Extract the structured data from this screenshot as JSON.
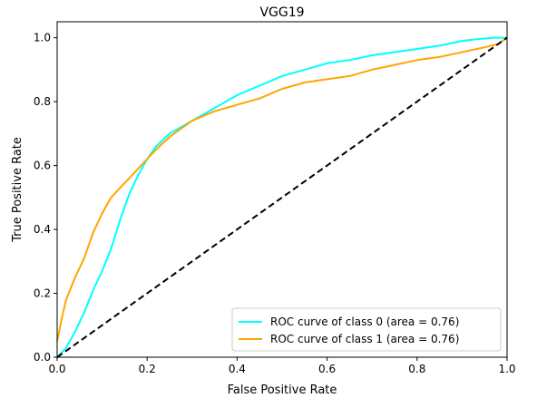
{
  "chart_data": {
    "type": "line",
    "title": "VGG19",
    "xlabel": "False Positive Rate",
    "ylabel": "True Positive Rate",
    "xlim": [
      0.0,
      1.0
    ],
    "ylim": [
      0.0,
      1.05
    ],
    "xticks": [
      0.0,
      0.2,
      0.4,
      0.6,
      0.8,
      1.0
    ],
    "yticks": [
      0.0,
      0.2,
      0.4,
      0.6,
      0.8,
      1.0
    ],
    "xtick_labels": [
      "0.0",
      "0.2",
      "0.4",
      "0.6",
      "0.8",
      "1.0"
    ],
    "ytick_labels": [
      "0.0",
      "0.2",
      "0.4",
      "0.6",
      "0.8",
      "1.0"
    ],
    "grid": false,
    "legend_position": "lower-right",
    "series": [
      {
        "name": "ROC curve of class 0 (area = 0.76)",
        "color": "#00ffff",
        "x": [
          0.0,
          0.02,
          0.04,
          0.06,
          0.08,
          0.1,
          0.12,
          0.14,
          0.16,
          0.18,
          0.2,
          0.22,
          0.25,
          0.3,
          0.35,
          0.4,
          0.45,
          0.5,
          0.55,
          0.6,
          0.65,
          0.7,
          0.75,
          0.8,
          0.85,
          0.9,
          0.93,
          0.97,
          1.0
        ],
        "y": [
          0.0,
          0.03,
          0.08,
          0.14,
          0.21,
          0.27,
          0.34,
          0.43,
          0.51,
          0.57,
          0.62,
          0.66,
          0.7,
          0.74,
          0.78,
          0.82,
          0.85,
          0.88,
          0.9,
          0.92,
          0.93,
          0.945,
          0.955,
          0.965,
          0.975,
          0.99,
          0.995,
          1.0,
          1.0
        ]
      },
      {
        "name": "ROC curve of class 1 (area = 0.76)",
        "color": "#ffa500",
        "x": [
          0.0,
          0.01,
          0.02,
          0.04,
          0.06,
          0.08,
          0.1,
          0.12,
          0.14,
          0.16,
          0.18,
          0.2,
          0.22,
          0.25,
          0.3,
          0.35,
          0.4,
          0.45,
          0.5,
          0.55,
          0.6,
          0.65,
          0.7,
          0.75,
          0.8,
          0.85,
          0.9,
          0.95,
          0.98,
          1.0
        ],
        "y": [
          0.05,
          0.12,
          0.18,
          0.25,
          0.31,
          0.39,
          0.45,
          0.5,
          0.53,
          0.56,
          0.59,
          0.62,
          0.65,
          0.69,
          0.74,
          0.77,
          0.79,
          0.81,
          0.84,
          0.86,
          0.87,
          0.88,
          0.9,
          0.915,
          0.93,
          0.94,
          0.955,
          0.97,
          0.98,
          1.0
        ]
      },
      {
        "name": "",
        "color": "#000000",
        "dashed": true,
        "x": [
          0.0,
          1.0
        ],
        "y": [
          0.0,
          1.0
        ]
      }
    ]
  }
}
